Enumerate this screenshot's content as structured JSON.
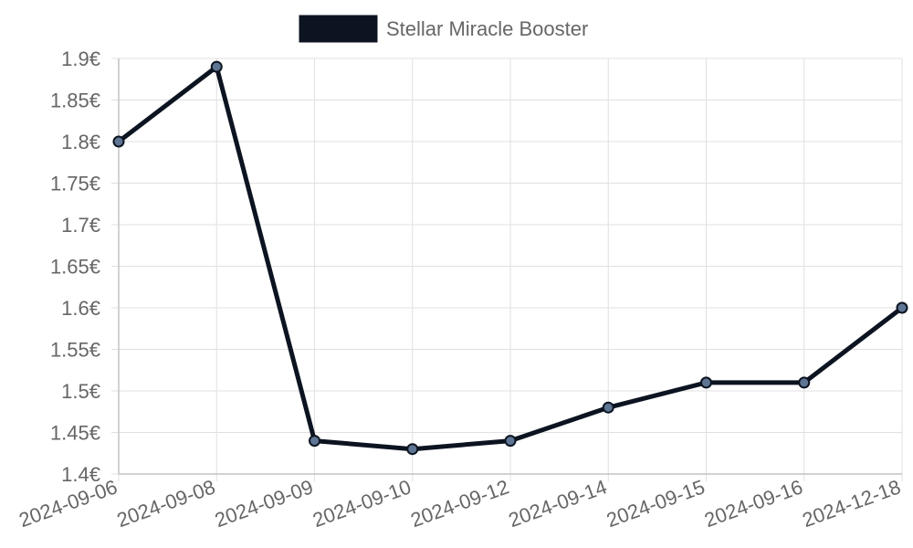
{
  "chart_data": {
    "type": "line",
    "x": [
      "2024-09-06",
      "2024-09-08",
      "2024-09-09",
      "2024-09-10",
      "2024-09-12",
      "2024-09-14",
      "2024-09-15",
      "2024-09-16",
      "2024-12-18"
    ],
    "series": [
      {
        "name": "Stellar Miracle Booster",
        "values": [
          1.8,
          1.89,
          1.44,
          1.43,
          1.44,
          1.48,
          1.51,
          1.51,
          1.6
        ]
      }
    ],
    "ylim": [
      1.4,
      1.9
    ],
    "yticks": [
      "1.4€",
      "1.45€",
      "1.5€",
      "1.55€",
      "1.6€",
      "1.65€",
      "1.7€",
      "1.75€",
      "1.8€",
      "1.85€",
      "1.9€"
    ],
    "ytick_values": [
      1.4,
      1.45,
      1.5,
      1.55,
      1.6,
      1.65,
      1.7,
      1.75,
      1.8,
      1.85,
      1.9
    ],
    "grid": true,
    "legend_position": "top-center",
    "colors": {
      "line": "#0d1421",
      "point_fill": "#5e7593",
      "grid": "#e0e0e0",
      "axis": "#c4c4c4",
      "text": "#666666"
    }
  }
}
